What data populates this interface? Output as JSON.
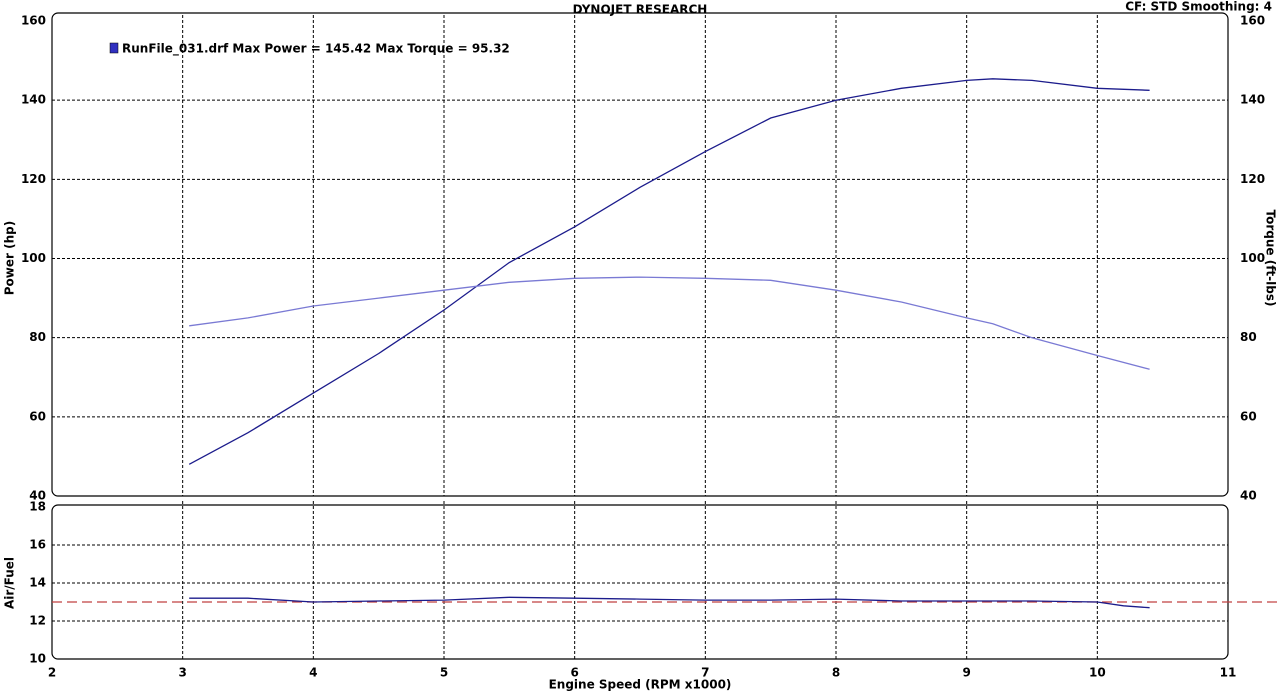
{
  "chart_data": [
    {
      "type": "line",
      "title": "DYNOJET RESEARCH",
      "note": "CF: STD  Smoothing: 4",
      "legend_text": "RunFile_031.drf Max Power = 145.42    Max Torque = 95.32",
      "ylabel": "Power (hp)",
      "y2label": "Torque (ft-lbs)",
      "x": [
        3.05,
        3.5,
        4,
        4.5,
        5,
        5.5,
        6,
        6.5,
        7,
        7.5,
        8,
        8.5,
        9,
        9.2,
        9.5,
        10,
        10.4
      ],
      "series": [
        {
          "color": "#1c1c8c",
          "values": [
            48,
            56,
            66,
            76,
            87,
            99,
            108,
            118,
            127,
            135.5,
            140,
            143,
            145,
            145.4,
            145,
            143,
            142.5
          ]
        },
        {
          "color": "#7a7ad4",
          "axis": "y2",
          "values": [
            83,
            85,
            88,
            90,
            92,
            94,
            95,
            95.3,
            95,
            94.5,
            92,
            89,
            85,
            83.5,
            80,
            75.5,
            72
          ]
        }
      ],
      "xlim": [
        2,
        11
      ],
      "xticks": [
        2,
        3,
        4,
        5,
        6,
        7,
        8,
        9,
        10,
        11
      ],
      "ylim": [
        40,
        160
      ],
      "yticks": [
        40,
        60,
        80,
        100,
        120,
        140,
        160
      ],
      "y2lim": [
        40,
        160
      ],
      "y2ticks": [
        40,
        60,
        80,
        100,
        120,
        140,
        160
      ],
      "grid": true
    },
    {
      "type": "line",
      "ylabel": "Air/Fuel",
      "xlabel": "Engine Speed (RPM x1000)",
      "x": [
        3.05,
        3.5,
        4,
        4.5,
        5,
        5.5,
        6,
        6.5,
        7,
        7.5,
        8,
        8.5,
        9,
        9.5,
        10,
        10.2,
        10.4
      ],
      "series": [
        {
          "color": "#1c1c8c",
          "values": [
            13.2,
            13.2,
            13.0,
            13.05,
            13.1,
            13.25,
            13.2,
            13.15,
            13.1,
            13.1,
            13.15,
            13.05,
            13.05,
            13.05,
            13.0,
            12.8,
            12.7
          ]
        }
      ],
      "reference_line": 13,
      "reference_color": "#c04040",
      "xlim": [
        2,
        11
      ],
      "xticks": [
        2,
        3,
        4,
        5,
        6,
        7,
        8,
        9,
        10,
        11
      ],
      "ylim": [
        10,
        18
      ],
      "yticks": [
        10,
        12,
        14,
        16,
        18
      ],
      "grid": true
    }
  ]
}
